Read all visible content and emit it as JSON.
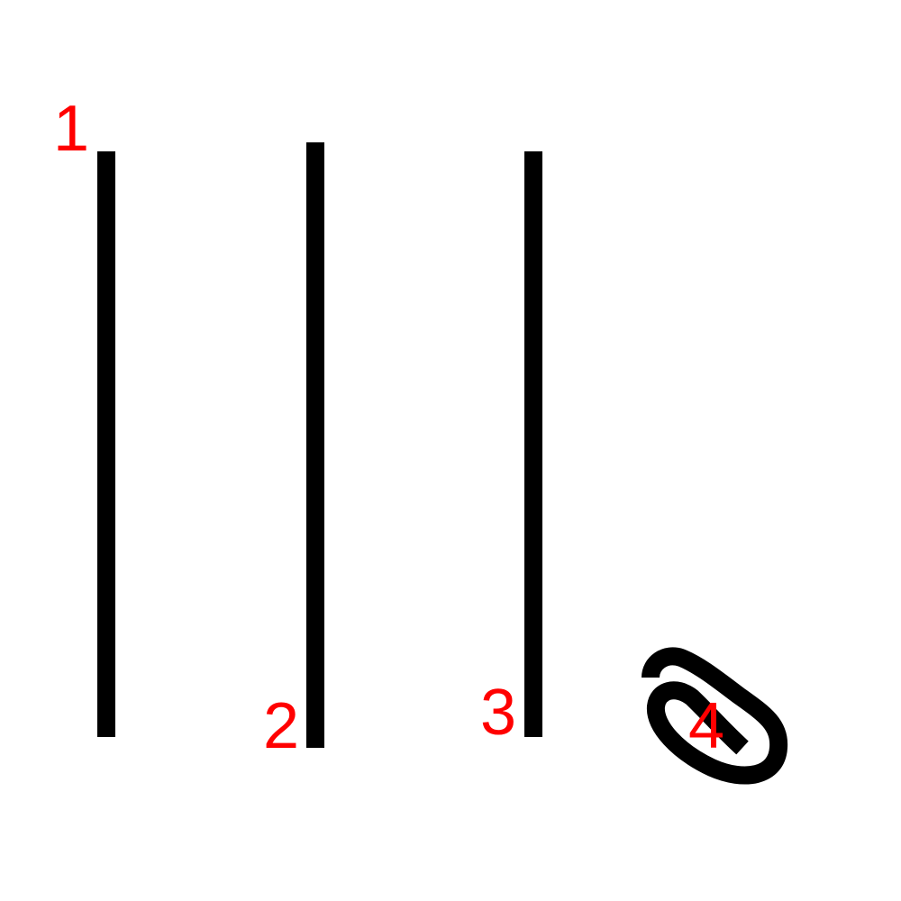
{
  "colors": {
    "background": "#ffffff",
    "stroke": "#000000",
    "label": "#ff0000"
  },
  "strokes": [
    {
      "number": "1"
    },
    {
      "number": "2"
    },
    {
      "number": "3"
    },
    {
      "number": "4"
    }
  ]
}
